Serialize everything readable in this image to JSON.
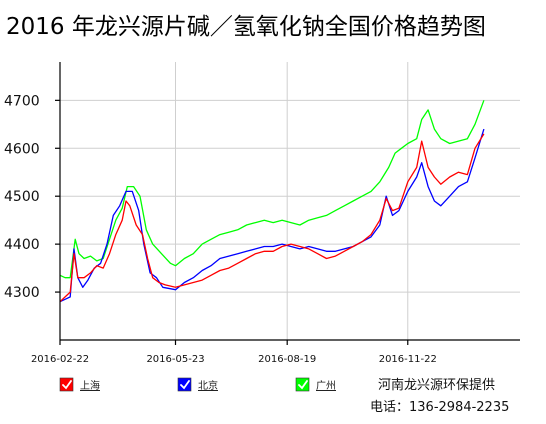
{
  "chart_data": {
    "type": "line",
    "title": "2016 年龙兴源片碱／氢氧化钠全国价格趋势图",
    "xlabel": "",
    "ylabel": "",
    "x_ticks": [
      "2016-02-22",
      "2016-05-23",
      "2016-08-19",
      "2016-11-22"
    ],
    "y_ticks": [
      4300,
      4400,
      4500,
      4600,
      4700
    ],
    "xlim": [
      "2016-02-22",
      "2017-01-21"
    ],
    "ylim": [
      4200,
      4780
    ],
    "grid": true,
    "legend_position": "bottom-left",
    "series": [
      {
        "name": "上海",
        "color": "#ff0000",
        "values": [
          [
            "2016-02-22",
            4280
          ],
          [
            "2016-02-26",
            4290
          ],
          [
            "2016-03-01",
            4300
          ],
          [
            "2016-03-04",
            4380
          ],
          [
            "2016-03-07",
            4330
          ],
          [
            "2016-03-12",
            4330
          ],
          [
            "2016-03-17",
            4340
          ],
          [
            "2016-03-22",
            4355
          ],
          [
            "2016-03-27",
            4350
          ],
          [
            "2016-04-01",
            4380
          ],
          [
            "2016-04-06",
            4420
          ],
          [
            "2016-04-11",
            4450
          ],
          [
            "2016-04-14",
            4490
          ],
          [
            "2016-04-17",
            4480
          ],
          [
            "2016-04-22",
            4440
          ],
          [
            "2016-04-27",
            4420
          ],
          [
            "2016-05-01",
            4370
          ],
          [
            "2016-05-05",
            4330
          ],
          [
            "2016-05-10",
            4320
          ],
          [
            "2016-05-15",
            4315
          ],
          [
            "2016-05-23",
            4310
          ],
          [
            "2016-05-30",
            4315
          ],
          [
            "2016-06-06",
            4320
          ],
          [
            "2016-06-13",
            4325
          ],
          [
            "2016-06-20",
            4335
          ],
          [
            "2016-06-27",
            4345
          ],
          [
            "2016-07-04",
            4350
          ],
          [
            "2016-07-11",
            4360
          ],
          [
            "2016-07-18",
            4370
          ],
          [
            "2016-07-25",
            4380
          ],
          [
            "2016-08-01",
            4385
          ],
          [
            "2016-08-08",
            4385
          ],
          [
            "2016-08-15",
            4395
          ],
          [
            "2016-08-22",
            4400
          ],
          [
            "2016-08-29",
            4395
          ],
          [
            "2016-09-05",
            4390
          ],
          [
            "2016-09-12",
            4380
          ],
          [
            "2016-09-19",
            4370
          ],
          [
            "2016-09-26",
            4375
          ],
          [
            "2016-10-03",
            4385
          ],
          [
            "2016-10-10",
            4395
          ],
          [
            "2016-10-17",
            4405
          ],
          [
            "2016-10-24",
            4420
          ],
          [
            "2016-10-31",
            4450
          ],
          [
            "2016-11-05",
            4495
          ],
          [
            "2016-11-10",
            4470
          ],
          [
            "2016-11-15",
            4475
          ],
          [
            "2016-11-22",
            4530
          ],
          [
            "2016-11-29",
            4560
          ],
          [
            "2016-12-03",
            4615
          ],
          [
            "2016-12-08",
            4560
          ],
          [
            "2016-12-13",
            4540
          ],
          [
            "2016-12-18",
            4525
          ],
          [
            "2016-12-25",
            4540
          ],
          [
            "2017-01-01",
            4550
          ],
          [
            "2017-01-08",
            4545
          ],
          [
            "2017-01-14",
            4600
          ],
          [
            "2017-01-21",
            4630
          ]
        ]
      },
      {
        "name": "北京",
        "color": "#0000ff",
        "values": [
          [
            "2016-02-22",
            4280
          ],
          [
            "2016-02-26",
            4285
          ],
          [
            "2016-03-01",
            4290
          ],
          [
            "2016-03-04",
            4390
          ],
          [
            "2016-03-07",
            4330
          ],
          [
            "2016-03-11",
            4310
          ],
          [
            "2016-03-15",
            4325
          ],
          [
            "2016-03-20",
            4350
          ],
          [
            "2016-03-25",
            4360
          ],
          [
            "2016-03-30",
            4400
          ],
          [
            "2016-04-04",
            4460
          ],
          [
            "2016-04-09",
            4480
          ],
          [
            "2016-04-14",
            4510
          ],
          [
            "2016-04-19",
            4510
          ],
          [
            "2016-04-24",
            4470
          ],
          [
            "2016-04-28",
            4400
          ],
          [
            "2016-05-03",
            4340
          ],
          [
            "2016-05-08",
            4330
          ],
          [
            "2016-05-13",
            4310
          ],
          [
            "2016-05-23",
            4305
          ],
          [
            "2016-05-30",
            4320
          ],
          [
            "2016-06-06",
            4330
          ],
          [
            "2016-06-13",
            4345
          ],
          [
            "2016-06-20",
            4355
          ],
          [
            "2016-06-27",
            4370
          ],
          [
            "2016-07-04",
            4375
          ],
          [
            "2016-07-11",
            4380
          ],
          [
            "2016-07-18",
            4385
          ],
          [
            "2016-07-25",
            4390
          ],
          [
            "2016-08-01",
            4395
          ],
          [
            "2016-08-08",
            4395
          ],
          [
            "2016-08-15",
            4400
          ],
          [
            "2016-08-22",
            4395
          ],
          [
            "2016-08-29",
            4390
          ],
          [
            "2016-09-05",
            4395
          ],
          [
            "2016-09-12",
            4390
          ],
          [
            "2016-09-19",
            4385
          ],
          [
            "2016-09-26",
            4385
          ],
          [
            "2016-10-03",
            4390
          ],
          [
            "2016-10-10",
            4395
          ],
          [
            "2016-10-17",
            4405
          ],
          [
            "2016-10-24",
            4415
          ],
          [
            "2016-10-31",
            4440
          ],
          [
            "2016-11-05",
            4500
          ],
          [
            "2016-11-10",
            4460
          ],
          [
            "2016-11-15",
            4470
          ],
          [
            "2016-11-22",
            4510
          ],
          [
            "2016-11-29",
            4540
          ],
          [
            "2016-12-03",
            4570
          ],
          [
            "2016-12-08",
            4520
          ],
          [
            "2016-12-13",
            4490
          ],
          [
            "2016-12-18",
            4480
          ],
          [
            "2016-12-25",
            4500
          ],
          [
            "2017-01-01",
            4520
          ],
          [
            "2017-01-08",
            4530
          ],
          [
            "2017-01-14",
            4580
          ],
          [
            "2017-01-21",
            4640
          ]
        ]
      },
      {
        "name": "广州",
        "color": "#00ff00",
        "values": [
          [
            "2016-02-22",
            4335
          ],
          [
            "2016-02-26",
            4330
          ],
          [
            "2016-03-01",
            4330
          ],
          [
            "2016-03-05",
            4410
          ],
          [
            "2016-03-08",
            4380
          ],
          [
            "2016-03-12",
            4370
          ],
          [
            "2016-03-17",
            4375
          ],
          [
            "2016-03-22",
            4365
          ],
          [
            "2016-03-27",
            4370
          ],
          [
            "2016-04-01",
            4410
          ],
          [
            "2016-04-06",
            4450
          ],
          [
            "2016-04-11",
            4475
          ],
          [
            "2016-04-15",
            4520
          ],
          [
            "2016-04-20",
            4520
          ],
          [
            "2016-04-25",
            4500
          ],
          [
            "2016-04-30",
            4430
          ],
          [
            "2016-05-05",
            4400
          ],
          [
            "2016-05-12",
            4380
          ],
          [
            "2016-05-19",
            4360
          ],
          [
            "2016-05-23",
            4355
          ],
          [
            "2016-05-30",
            4370
          ],
          [
            "2016-06-06",
            4380
          ],
          [
            "2016-06-13",
            4400
          ],
          [
            "2016-06-20",
            4410
          ],
          [
            "2016-06-27",
            4420
          ],
          [
            "2016-07-04",
            4425
          ],
          [
            "2016-07-11",
            4430
          ],
          [
            "2016-07-18",
            4440
          ],
          [
            "2016-07-25",
            4445
          ],
          [
            "2016-08-01",
            4450
          ],
          [
            "2016-08-08",
            4445
          ],
          [
            "2016-08-15",
            4450
          ],
          [
            "2016-08-22",
            4445
          ],
          [
            "2016-08-29",
            4440
          ],
          [
            "2016-09-05",
            4450
          ],
          [
            "2016-09-12",
            4455
          ],
          [
            "2016-09-19",
            4460
          ],
          [
            "2016-09-26",
            4470
          ],
          [
            "2016-10-03",
            4480
          ],
          [
            "2016-10-10",
            4490
          ],
          [
            "2016-10-17",
            4500
          ],
          [
            "2016-10-24",
            4510
          ],
          [
            "2016-10-31",
            4530
          ],
          [
            "2016-11-07",
            4560
          ],
          [
            "2016-11-12",
            4590
          ],
          [
            "2016-11-17",
            4600
          ],
          [
            "2016-11-22",
            4610
          ],
          [
            "2016-11-29",
            4620
          ],
          [
            "2016-12-03",
            4660
          ],
          [
            "2016-12-08",
            4680
          ],
          [
            "2016-12-13",
            4640
          ],
          [
            "2016-12-18",
            4620
          ],
          [
            "2016-12-25",
            4610
          ],
          [
            "2017-01-01",
            4615
          ],
          [
            "2017-01-08",
            4620
          ],
          [
            "2017-01-14",
            4650
          ],
          [
            "2017-01-21",
            4700
          ]
        ]
      }
    ]
  },
  "footer": {
    "company": "河南龙兴源环保提供",
    "phone": "电话：136-2984-2235"
  }
}
